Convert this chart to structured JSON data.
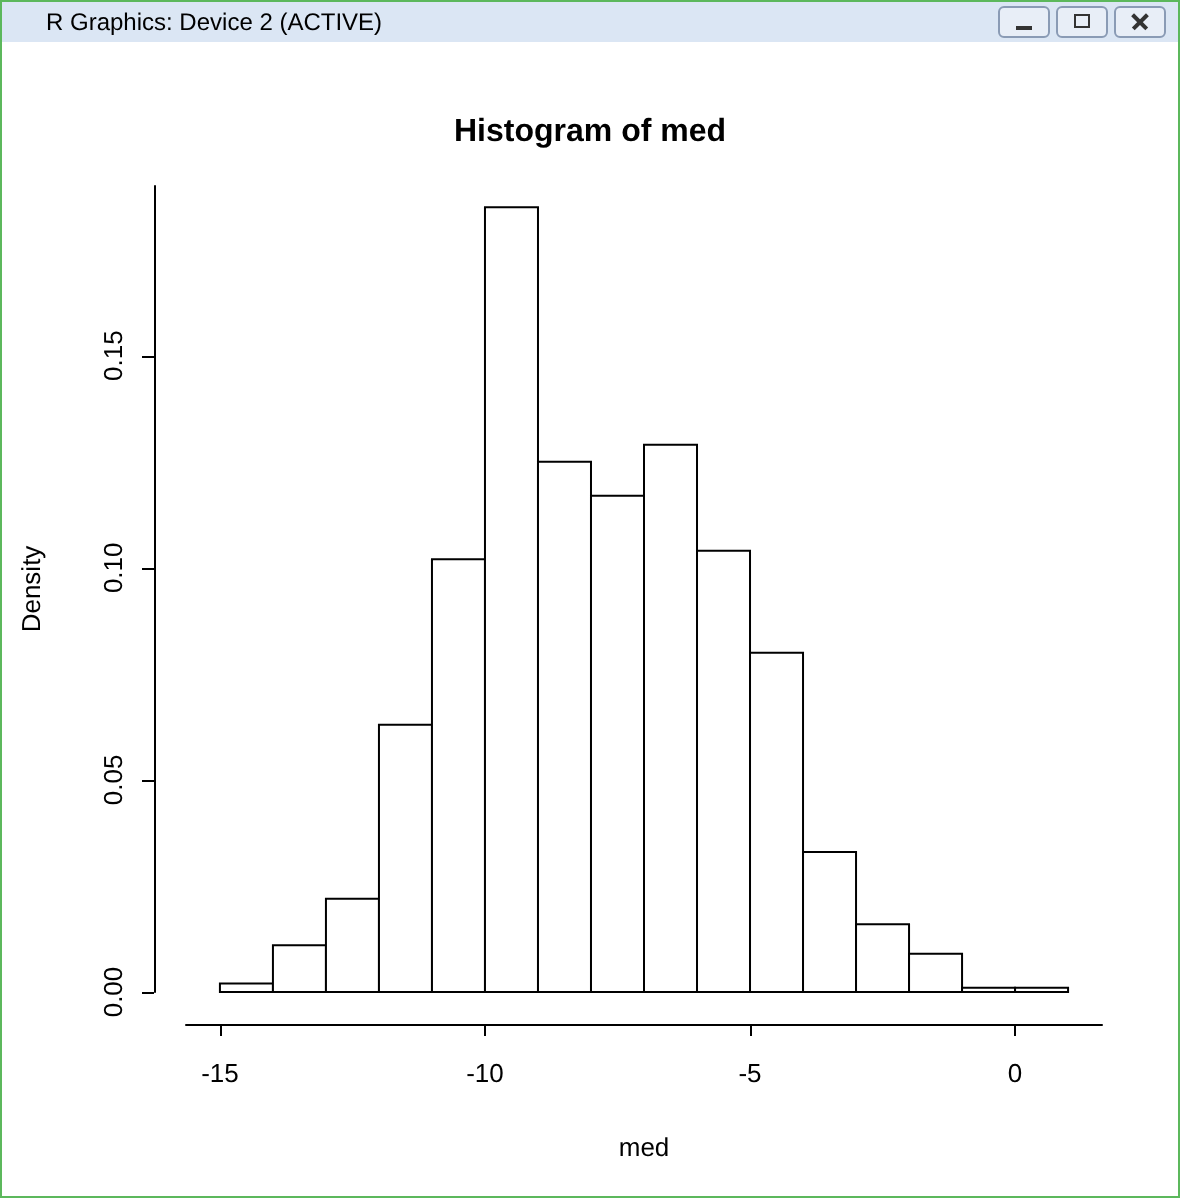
{
  "chart_data": {
    "type": "histogram",
    "title": "Histogram of med",
    "xlabel": "med",
    "ylabel": "Density",
    "annotations": [
      "R Graphics: Device 2 (ACTIVE)"
    ],
    "bins": [
      -15,
      -14,
      -13,
      -12,
      -11,
      -10,
      -9,
      -8,
      -7,
      -6,
      -5,
      -4,
      -3,
      -2,
      -1,
      0,
      1
    ],
    "values": [
      0.002,
      0.011,
      0.022,
      0.063,
      0.102,
      0.185,
      0.125,
      0.117,
      0.129,
      0.104,
      0.08,
      0.033,
      0.016,
      0.009,
      0.001,
      0.001
    ],
    "color": "#ffffff",
    "xlim": [
      -15.64,
      1.64
    ],
    "xticks": [
      -15,
      -10,
      -5,
      0
    ],
    "ylim": [
      0,
      0.19
    ],
    "yticks": [
      {
        "value": 0,
        "label": "0.00"
      },
      {
        "value": 0.05,
        "label": "0.05"
      },
      {
        "value": 0.1,
        "label": "0.10"
      },
      {
        "value": 0.15,
        "label": "0.15"
      }
    ],
    "grid": false
  }
}
